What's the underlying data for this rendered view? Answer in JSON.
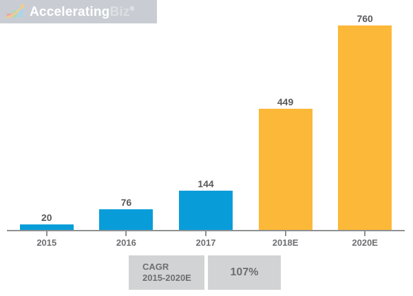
{
  "header": {
    "logo": {
      "part1": "Accelerating",
      "part2": "Biz",
      "reg": "®",
      "icon": "rising-steps-arrow-icon",
      "background_color": "#c9cdd3"
    }
  },
  "chart_data": {
    "type": "bar",
    "title": "",
    "xlabel": "",
    "ylabel": "",
    "categories": [
      "2015",
      "2016",
      "2017",
      "2018E",
      "2020E"
    ],
    "values": [
      20,
      76,
      144,
      449,
      760
    ],
    "bar_colors": [
      "#089dd9",
      "#089dd9",
      "#089dd9",
      "#fcb838",
      "#fcb838"
    ],
    "ylim": [
      0,
      800
    ],
    "grid": false,
    "legend": false,
    "value_labels_shown": true,
    "axis_color": "#8d8f92",
    "value_label_color": "#58595b",
    "tick_label_color": "#6d6e71"
  },
  "cagr_box": {
    "label_line1": "CAGR",
    "label_line2": "2015-2020E",
    "value": "107%",
    "background_color": "#d2d3d5"
  }
}
